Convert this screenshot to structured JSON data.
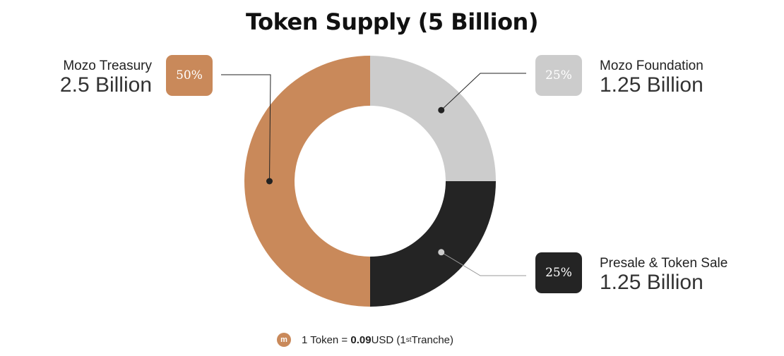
{
  "title": "Token Supply (5 Billion)",
  "chart_data": {
    "type": "pie",
    "title": "Token Supply (5 Billion)",
    "slices": [
      {
        "label": "Mozo Foundation",
        "value": 25,
        "percent_label": "25%",
        "amount": "1.25 Billion",
        "color": "#cccccc",
        "dot": "#222222",
        "line": "#222222"
      },
      {
        "label": "Presale & Token Sale",
        "value": 25,
        "percent_label": "25%",
        "amount": "1.25 Billion",
        "color": "#242424",
        "dot": "#cccccc",
        "line": "#9a9a9a"
      },
      {
        "label": "Mozo Treasury",
        "value": 50,
        "percent_label": "50%",
        "amount": "2.5 Billion",
        "color": "#c9895a",
        "dot": "#222222",
        "line": "#222222"
      }
    ]
  },
  "footer": {
    "coin_icon": "mozo-coin-icon",
    "coin_glyph": "m",
    "prefix": "1 Token = ",
    "price": "0.09",
    "currency": " USD (1",
    "sup": "st",
    "suffix": " Tranche)"
  }
}
